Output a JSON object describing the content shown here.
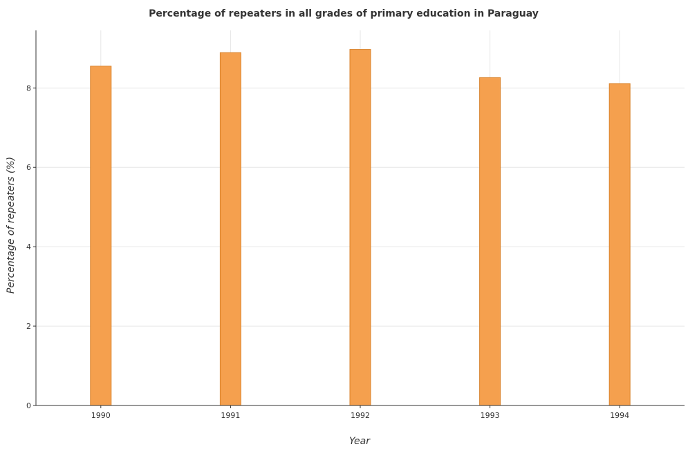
{
  "chart_data": {
    "type": "bar",
    "title": "Percentage of repeaters in all grades of primary education in Paraguay",
    "xlabel": "Year",
    "ylabel": "Percentage of repeaters (%)",
    "categories": [
      "1990",
      "1991",
      "1992",
      "1993",
      "1994"
    ],
    "values": [
      8.55,
      8.89,
      8.97,
      8.26,
      8.11
    ],
    "ylim": [
      0,
      9.45
    ],
    "yticks": [
      0,
      2,
      4,
      6,
      8
    ],
    "ytick_labels": [
      "0",
      "2",
      "4",
      "6",
      "8"
    ],
    "grid": true,
    "colors": {
      "bar_fill": "#f5a04e",
      "bar_stroke": "#d9822b",
      "grid": "#e6e6e6",
      "axis": "#333333"
    }
  }
}
